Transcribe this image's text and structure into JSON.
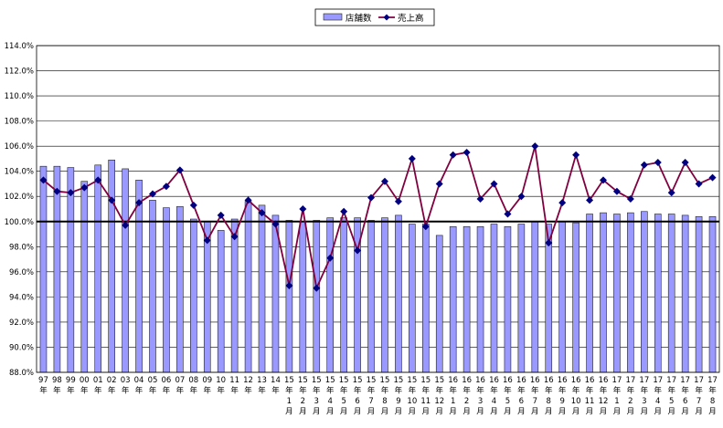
{
  "chart_data": {
    "type": "bar",
    "categories": [
      [
        "97",
        "年"
      ],
      [
        "98",
        "年"
      ],
      [
        "99",
        "年"
      ],
      [
        "00",
        "年"
      ],
      [
        "01",
        "年"
      ],
      [
        "02",
        "年"
      ],
      [
        "03",
        "年"
      ],
      [
        "04",
        "年"
      ],
      [
        "05",
        "年"
      ],
      [
        "06",
        "年"
      ],
      [
        "07",
        "年"
      ],
      [
        "08",
        "年"
      ],
      [
        "09",
        "年"
      ],
      [
        "10",
        "年"
      ],
      [
        "11",
        "年"
      ],
      [
        "12",
        "年"
      ],
      [
        "13",
        "年"
      ],
      [
        "14",
        "年"
      ],
      [
        "15",
        "年",
        "1",
        "月"
      ],
      [
        "15",
        "年",
        "2",
        "月"
      ],
      [
        "15",
        "年",
        "3",
        "月"
      ],
      [
        "15",
        "年",
        "4",
        "月"
      ],
      [
        "15",
        "年",
        "5",
        "月"
      ],
      [
        "15",
        "年",
        "6",
        "月"
      ],
      [
        "15",
        "年",
        "7",
        "月"
      ],
      [
        "15",
        "年",
        "8",
        "月"
      ],
      [
        "15",
        "年",
        "9",
        "月"
      ],
      [
        "15",
        "年",
        "10",
        "月"
      ],
      [
        "15",
        "年",
        "11",
        "月"
      ],
      [
        "15",
        "年",
        "12",
        "月"
      ],
      [
        "16",
        "年",
        "1",
        "月"
      ],
      [
        "16",
        "年",
        "2",
        "月"
      ],
      [
        "16",
        "年",
        "3",
        "月"
      ],
      [
        "16",
        "年",
        "4",
        "月"
      ],
      [
        "16",
        "年",
        "5",
        "月"
      ],
      [
        "16",
        "年",
        "6",
        "月"
      ],
      [
        "16",
        "年",
        "7",
        "月"
      ],
      [
        "16",
        "年",
        "8",
        "月"
      ],
      [
        "16",
        "年",
        "9",
        "月"
      ],
      [
        "16",
        "年",
        "10",
        "月"
      ],
      [
        "16",
        "年",
        "11",
        "月"
      ],
      [
        "16",
        "年",
        "12",
        "月"
      ],
      [
        "17",
        "年",
        "1",
        "月"
      ],
      [
        "17",
        "年",
        "2",
        "月"
      ],
      [
        "17",
        "年",
        "3",
        "月"
      ],
      [
        "17",
        "年",
        "4",
        "月"
      ],
      [
        "17",
        "年",
        "5",
        "月"
      ],
      [
        "17",
        "年",
        "6",
        "月"
      ],
      [
        "17",
        "年",
        "7",
        "月"
      ],
      [
        "17",
        "年",
        "8",
        "月"
      ]
    ],
    "series": [
      {
        "name": "店舗数",
        "kind": "bar",
        "color": "#9999ff",
        "values": [
          104.4,
          104.4,
          104.3,
          103.2,
          104.5,
          104.9,
          104.2,
          103.3,
          101.7,
          101.1,
          101.2,
          100.2,
          100.0,
          99.3,
          100.2,
          101.6,
          101.3,
          100.5,
          100.1,
          100.0,
          100.1,
          100.3,
          100.3,
          100.3,
          100.1,
          100.3,
          100.5,
          99.8,
          99.8,
          98.9,
          99.6,
          99.6,
          99.6,
          99.8,
          99.6,
          99.8,
          100.0,
          99.8,
          100.0,
          99.9,
          100.6,
          100.7,
          100.6,
          100.7,
          100.8,
          100.6,
          100.6,
          100.5,
          100.4,
          100.4
        ]
      },
      {
        "name": "売上高",
        "kind": "line",
        "color": "#800040",
        "marker_color": "#000080",
        "values": [
          103.3,
          102.4,
          102.3,
          102.7,
          103.3,
          101.7,
          99.7,
          101.5,
          102.2,
          102.8,
          104.1,
          101.3,
          98.5,
          100.5,
          98.8,
          101.7,
          100.7,
          99.8,
          94.9,
          101.0,
          94.7,
          97.1,
          100.8,
          97.7,
          101.9,
          103.2,
          101.6,
          105.0,
          99.6,
          103.0,
          105.3,
          105.5,
          101.8,
          103.0,
          100.6,
          102.0,
          106.0,
          98.3,
          101.5,
          105.3,
          101.7,
          103.3,
          102.4,
          101.8,
          104.5,
          104.7,
          102.3,
          104.7,
          103.0,
          103.5
        ]
      }
    ],
    "ylim": [
      88,
      114
    ],
    "yticks": [
      "88.0%",
      "90.0%",
      "92.0%",
      "94.0%",
      "96.0%",
      "98.0%",
      "100.0%",
      "102.0%",
      "104.0%",
      "106.0%",
      "108.0%",
      "110.0%",
      "112.0%",
      "114.0%"
    ],
    "reference_line": 100,
    "grid": true,
    "legend_position": "top-center"
  }
}
